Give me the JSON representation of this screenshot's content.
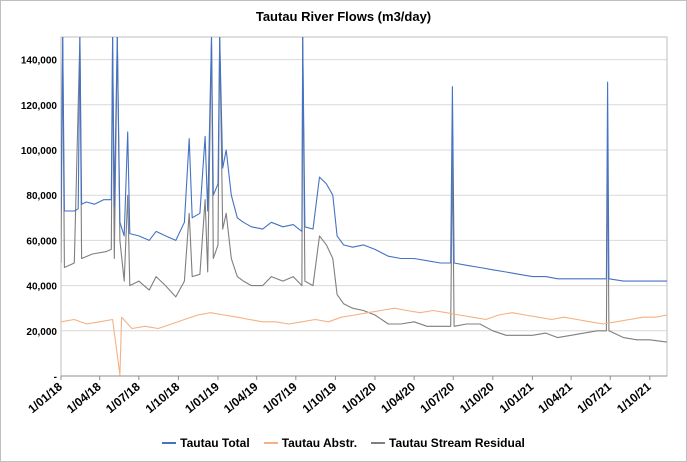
{
  "chart_data": {
    "type": "line",
    "title": "Tautau River Flows (m3/day)",
    "xlabel": "",
    "ylabel": "",
    "ylim": [
      0,
      150000
    ],
    "y_ticks": [
      {
        "value": 0,
        "label": "-"
      },
      {
        "value": 20000,
        "label": "20,000"
      },
      {
        "value": 40000,
        "label": "40,000"
      },
      {
        "value": 60000,
        "label": "60,000"
      },
      {
        "value": 80000,
        "label": "80,000"
      },
      {
        "value": 100000,
        "label": "100,000"
      },
      {
        "value": 120000,
        "label": "120,000"
      },
      {
        "value": 140000,
        "label": "140,000"
      }
    ],
    "x_range": [
      "2018-01-01",
      "2021-11-10"
    ],
    "x_ticks": [
      {
        "date": "2018-01-01",
        "label": "1/01/18"
      },
      {
        "date": "2018-04-01",
        "label": "1/04/18"
      },
      {
        "date": "2018-07-01",
        "label": "1/07/18"
      },
      {
        "date": "2018-10-01",
        "label": "1/10/18"
      },
      {
        "date": "2019-01-01",
        "label": "1/01/19"
      },
      {
        "date": "2019-04-01",
        "label": "1/04/19"
      },
      {
        "date": "2019-07-01",
        "label": "1/07/19"
      },
      {
        "date": "2019-10-01",
        "label": "1/10/19"
      },
      {
        "date": "2020-01-01",
        "label": "1/01/20"
      },
      {
        "date": "2020-04-01",
        "label": "1/04/20"
      },
      {
        "date": "2020-07-01",
        "label": "1/07/20"
      },
      {
        "date": "2020-10-01",
        "label": "1/10/20"
      },
      {
        "date": "2021-01-01",
        "label": "1/01/21"
      },
      {
        "date": "2021-04-01",
        "label": "1/04/21"
      },
      {
        "date": "2021-07-01",
        "label": "1/07/21"
      },
      {
        "date": "2021-10-01",
        "label": "1/10/21"
      }
    ],
    "grid": "horizontal",
    "legend_position": "bottom",
    "series": [
      {
        "name": "Tautau Total",
        "color": "#4472c4",
        "points": [
          [
            "2018-01-01",
            73000
          ],
          [
            "2018-01-05",
            150000
          ],
          [
            "2018-01-09",
            73000
          ],
          [
            "2018-02-01",
            73000
          ],
          [
            "2018-02-10",
            74000
          ],
          [
            "2018-02-14",
            150000
          ],
          [
            "2018-02-18",
            76000
          ],
          [
            "2018-03-01",
            77000
          ],
          [
            "2018-03-20",
            76000
          ],
          [
            "2018-04-10",
            78000
          ],
          [
            "2018-04-28",
            78000
          ],
          [
            "2018-05-01",
            150000
          ],
          [
            "2018-05-05",
            75000
          ],
          [
            "2018-05-12",
            150000
          ],
          [
            "2018-05-18",
            68000
          ],
          [
            "2018-05-28",
            62000
          ],
          [
            "2018-06-05",
            108000
          ],
          [
            "2018-06-10",
            63000
          ],
          [
            "2018-07-01",
            62000
          ],
          [
            "2018-07-25",
            60000
          ],
          [
            "2018-08-10",
            64000
          ],
          [
            "2018-09-01",
            62000
          ],
          [
            "2018-09-25",
            60000
          ],
          [
            "2018-10-15",
            68000
          ],
          [
            "2018-10-26",
            105000
          ],
          [
            "2018-11-02",
            70000
          ],
          [
            "2018-11-20",
            72000
          ],
          [
            "2018-12-02",
            106000
          ],
          [
            "2018-12-08",
            73000
          ],
          [
            "2018-12-17",
            150000
          ],
          [
            "2018-12-21",
            80000
          ],
          [
            "2019-01-01",
            85000
          ],
          [
            "2019-01-05",
            150000
          ],
          [
            "2019-01-12",
            92000
          ],
          [
            "2019-01-20",
            100000
          ],
          [
            "2019-02-01",
            80000
          ],
          [
            "2019-02-15",
            70000
          ],
          [
            "2019-03-01",
            68000
          ],
          [
            "2019-03-20",
            66000
          ],
          [
            "2019-04-15",
            65000
          ],
          [
            "2019-05-05",
            68000
          ],
          [
            "2019-06-01",
            66000
          ],
          [
            "2019-06-25",
            67000
          ],
          [
            "2019-07-15",
            64000
          ],
          [
            "2019-07-17",
            150000
          ],
          [
            "2019-07-22",
            66000
          ],
          [
            "2019-08-10",
            65000
          ],
          [
            "2019-08-25",
            88000
          ],
          [
            "2019-09-10",
            85000
          ],
          [
            "2019-09-25",
            80000
          ],
          [
            "2019-10-05",
            62000
          ],
          [
            "2019-10-20",
            58000
          ],
          [
            "2019-11-10",
            57000
          ],
          [
            "2019-12-05",
            58000
          ],
          [
            "2020-01-01",
            56000
          ],
          [
            "2020-02-01",
            53000
          ],
          [
            "2020-03-01",
            52000
          ],
          [
            "2020-04-01",
            52000
          ],
          [
            "2020-05-01",
            51000
          ],
          [
            "2020-06-01",
            50000
          ],
          [
            "2020-06-25",
            50000
          ],
          [
            "2020-06-29",
            128000
          ],
          [
            "2020-07-03",
            50000
          ],
          [
            "2020-08-01",
            49000
          ],
          [
            "2020-09-01",
            48000
          ],
          [
            "2020-10-01",
            47000
          ],
          [
            "2020-11-01",
            46000
          ],
          [
            "2020-12-01",
            45000
          ],
          [
            "2021-01-01",
            44000
          ],
          [
            "2021-02-01",
            44000
          ],
          [
            "2021-03-01",
            43000
          ],
          [
            "2021-04-01",
            43000
          ],
          [
            "2021-05-01",
            43000
          ],
          [
            "2021-06-01",
            43000
          ],
          [
            "2021-06-22",
            43000
          ],
          [
            "2021-06-25",
            130000
          ],
          [
            "2021-06-28",
            43000
          ],
          [
            "2021-08-01",
            42000
          ],
          [
            "2021-09-01",
            42000
          ],
          [
            "2021-10-01",
            42000
          ],
          [
            "2021-11-10",
            42000
          ]
        ]
      },
      {
        "name": "Tautau Abstr.",
        "color": "#f4b183",
        "points": [
          [
            "2018-01-01",
            24000
          ],
          [
            "2018-02-01",
            25000
          ],
          [
            "2018-03-01",
            23000
          ],
          [
            "2018-04-01",
            24000
          ],
          [
            "2018-05-01",
            25000
          ],
          [
            "2018-05-18",
            500
          ],
          [
            "2018-05-22",
            26000
          ],
          [
            "2018-06-15",
            21000
          ],
          [
            "2018-07-15",
            22000
          ],
          [
            "2018-08-15",
            21000
          ],
          [
            "2018-09-15",
            23000
          ],
          [
            "2018-10-15",
            25000
          ],
          [
            "2018-11-15",
            27000
          ],
          [
            "2018-12-15",
            28000
          ],
          [
            "2019-01-15",
            27000
          ],
          [
            "2019-02-15",
            26000
          ],
          [
            "2019-03-15",
            25000
          ],
          [
            "2019-04-15",
            24000
          ],
          [
            "2019-05-15",
            24000
          ],
          [
            "2019-06-15",
            23000
          ],
          [
            "2019-07-15",
            24000
          ],
          [
            "2019-08-15",
            25000
          ],
          [
            "2019-09-15",
            24000
          ],
          [
            "2019-10-15",
            26000
          ],
          [
            "2019-11-15",
            27000
          ],
          [
            "2019-12-15",
            28000
          ],
          [
            "2020-01-15",
            29000
          ],
          [
            "2020-02-15",
            30000
          ],
          [
            "2020-03-15",
            29000
          ],
          [
            "2020-04-15",
            28000
          ],
          [
            "2020-05-15",
            29000
          ],
          [
            "2020-06-15",
            28000
          ],
          [
            "2020-07-15",
            27000
          ],
          [
            "2020-08-15",
            26000
          ],
          [
            "2020-09-15",
            25000
          ],
          [
            "2020-10-15",
            27000
          ],
          [
            "2020-11-15",
            28000
          ],
          [
            "2020-12-15",
            27000
          ],
          [
            "2021-01-15",
            26000
          ],
          [
            "2021-02-15",
            25000
          ],
          [
            "2021-03-15",
            26000
          ],
          [
            "2021-04-15",
            25000
          ],
          [
            "2021-05-15",
            24000
          ],
          [
            "2021-06-15",
            23000
          ],
          [
            "2021-07-15",
            24000
          ],
          [
            "2021-08-15",
            25000
          ],
          [
            "2021-09-15",
            26000
          ],
          [
            "2021-10-15",
            26000
          ],
          [
            "2021-11-10",
            27000
          ]
        ]
      },
      {
        "name": "Tautau Stream Residual",
        "color": "#7f7f7f",
        "points": [
          [
            "2018-01-01",
            50000
          ],
          [
            "2018-01-05",
            150000
          ],
          [
            "2018-01-09",
            48000
          ],
          [
            "2018-02-01",
            50000
          ],
          [
            "2018-02-14",
            150000
          ],
          [
            "2018-02-18",
            52000
          ],
          [
            "2018-03-15",
            54000
          ],
          [
            "2018-04-15",
            55000
          ],
          [
            "2018-04-28",
            56000
          ],
          [
            "2018-05-01",
            150000
          ],
          [
            "2018-05-05",
            52000
          ],
          [
            "2018-05-12",
            150000
          ],
          [
            "2018-05-18",
            60000
          ],
          [
            "2018-05-28",
            42000
          ],
          [
            "2018-06-05",
            80000
          ],
          [
            "2018-06-10",
            40000
          ],
          [
            "2018-07-01",
            42000
          ],
          [
            "2018-07-25",
            38000
          ],
          [
            "2018-08-10",
            44000
          ],
          [
            "2018-09-01",
            40000
          ],
          [
            "2018-09-25",
            35000
          ],
          [
            "2018-10-15",
            42000
          ],
          [
            "2018-10-26",
            72000
          ],
          [
            "2018-11-02",
            44000
          ],
          [
            "2018-11-20",
            45000
          ],
          [
            "2018-12-02",
            78000
          ],
          [
            "2018-12-08",
            46000
          ],
          [
            "2018-12-17",
            150000
          ],
          [
            "2018-12-21",
            52000
          ],
          [
            "2019-01-01",
            58000
          ],
          [
            "2019-01-05",
            150000
          ],
          [
            "2019-01-12",
            65000
          ],
          [
            "2019-01-20",
            72000
          ],
          [
            "2019-02-01",
            52000
          ],
          [
            "2019-02-15",
            44000
          ],
          [
            "2019-03-01",
            42000
          ],
          [
            "2019-03-20",
            40000
          ],
          [
            "2019-04-15",
            40000
          ],
          [
            "2019-05-05",
            44000
          ],
          [
            "2019-06-01",
            42000
          ],
          [
            "2019-06-25",
            44000
          ],
          [
            "2019-07-15",
            40000
          ],
          [
            "2019-07-17",
            150000
          ],
          [
            "2019-07-22",
            42000
          ],
          [
            "2019-08-10",
            40000
          ],
          [
            "2019-08-25",
            62000
          ],
          [
            "2019-09-10",
            58000
          ],
          [
            "2019-09-25",
            52000
          ],
          [
            "2019-10-05",
            36000
          ],
          [
            "2019-10-20",
            32000
          ],
          [
            "2019-11-10",
            30000
          ],
          [
            "2019-12-05",
            29000
          ],
          [
            "2020-01-01",
            27000
          ],
          [
            "2020-02-01",
            23000
          ],
          [
            "2020-03-01",
            23000
          ],
          [
            "2020-04-01",
            24000
          ],
          [
            "2020-05-01",
            22000
          ],
          [
            "2020-06-01",
            22000
          ],
          [
            "2020-06-25",
            22000
          ],
          [
            "2020-06-29",
            100000
          ],
          [
            "2020-07-03",
            22000
          ],
          [
            "2020-08-01",
            23000
          ],
          [
            "2020-09-01",
            23000
          ],
          [
            "2020-10-01",
            20000
          ],
          [
            "2020-11-01",
            18000
          ],
          [
            "2020-12-01",
            18000
          ],
          [
            "2021-01-01",
            18000
          ],
          [
            "2021-02-01",
            19000
          ],
          [
            "2021-03-01",
            17000
          ],
          [
            "2021-04-01",
            18000
          ],
          [
            "2021-05-01",
            19000
          ],
          [
            "2021-06-01",
            20000
          ],
          [
            "2021-06-22",
            20000
          ],
          [
            "2021-06-25",
            105000
          ],
          [
            "2021-06-28",
            20000
          ],
          [
            "2021-08-01",
            17000
          ],
          [
            "2021-09-01",
            16000
          ],
          [
            "2021-10-01",
            16000
          ],
          [
            "2021-11-10",
            15000
          ]
        ]
      }
    ]
  }
}
